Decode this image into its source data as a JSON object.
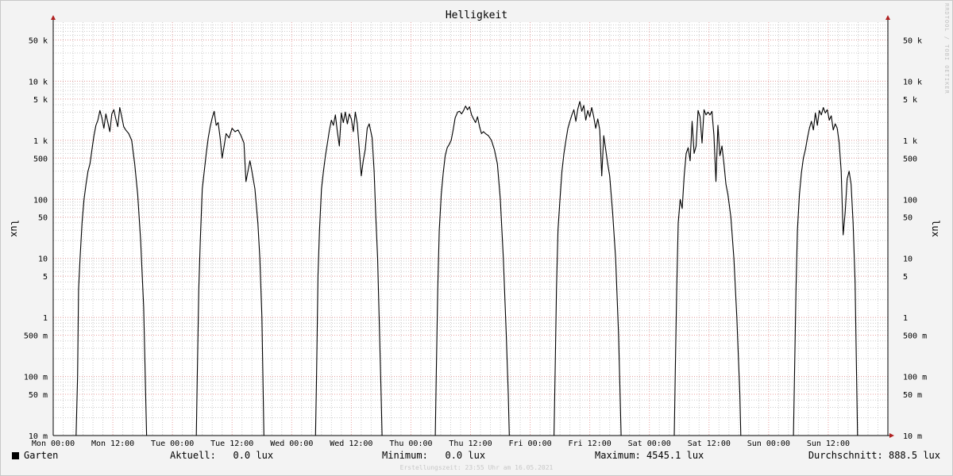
{
  "chart_data": {
    "type": "line",
    "title": "Helligkeit",
    "ylabel": "lux",
    "yscale": "log",
    "ylim": [
      0.01,
      100000
    ],
    "xlim": [
      0,
      168
    ],
    "y_ticks": [
      {
        "v": 50000,
        "label": "50 k"
      },
      {
        "v": 10000,
        "label": "10 k"
      },
      {
        "v": 5000,
        "label": "5 k"
      },
      {
        "v": 1000,
        "label": "1 k"
      },
      {
        "v": 500,
        "label": "500"
      },
      {
        "v": 100,
        "label": "100"
      },
      {
        "v": 50,
        "label": "50"
      },
      {
        "v": 10,
        "label": "10"
      },
      {
        "v": 5,
        "label": "5"
      },
      {
        "v": 1,
        "label": "1"
      },
      {
        "v": 0.5,
        "label": "500 m"
      },
      {
        "v": 0.1,
        "label": "100 m"
      },
      {
        "v": 0.05,
        "label": "50 m"
      },
      {
        "v": 0.01,
        "label": "10 m"
      }
    ],
    "x_ticks": [
      {
        "h": 0,
        "label": "Mon 00:00"
      },
      {
        "h": 12,
        "label": "Mon 12:00"
      },
      {
        "h": 24,
        "label": "Tue 00:00"
      },
      {
        "h": 36,
        "label": "Tue 12:00"
      },
      {
        "h": 48,
        "label": "Wed 00:00"
      },
      {
        "h": 60,
        "label": "Wed 12:00"
      },
      {
        "h": 72,
        "label": "Thu 00:00"
      },
      {
        "h": 84,
        "label": "Thu 12:00"
      },
      {
        "h": 96,
        "label": "Fri 00:00"
      },
      {
        "h": 108,
        "label": "Fri 12:00"
      },
      {
        "h": 120,
        "label": "Sat 00:00"
      },
      {
        "h": 132,
        "label": "Sat 12:00"
      },
      {
        "h": 144,
        "label": "Sun 00:00"
      },
      {
        "h": 156,
        "label": "Sun 12:00"
      }
    ],
    "grid": true,
    "series": [
      {
        "name": "Garten",
        "color": "#000000",
        "points": [
          [
            0,
            0.01
          ],
          [
            4.6,
            0.01
          ],
          [
            4.9,
            0.1
          ],
          [
            5.1,
            3
          ],
          [
            5.4,
            10
          ],
          [
            5.8,
            40
          ],
          [
            6.2,
            100
          ],
          [
            6.6,
            180
          ],
          [
            7.0,
            300
          ],
          [
            7.4,
            400
          ],
          [
            7.8,
            700
          ],
          [
            8.2,
            1200
          ],
          [
            8.6,
            1800
          ],
          [
            9.0,
            2200
          ],
          [
            9.4,
            3200
          ],
          [
            9.8,
            2400
          ],
          [
            10.2,
            1600
          ],
          [
            10.6,
            2800
          ],
          [
            11,
            2000
          ],
          [
            11.4,
            1400
          ],
          [
            11.8,
            2800
          ],
          [
            12.2,
            3300
          ],
          [
            12.6,
            2300
          ],
          [
            13,
            1700
          ],
          [
            13.4,
            3600
          ],
          [
            13.8,
            2500
          ],
          [
            14.2,
            1700
          ],
          [
            14.6,
            1500
          ],
          [
            15.2,
            1300
          ],
          [
            15.8,
            1000
          ],
          [
            16.4,
            400
          ],
          [
            17,
            120
          ],
          [
            17.6,
            20
          ],
          [
            18.2,
            1.5
          ],
          [
            18.6,
            0.05
          ],
          [
            18.8,
            0.01
          ],
          [
            28.8,
            0.01
          ],
          [
            29,
            0.1
          ],
          [
            29.3,
            3
          ],
          [
            29.6,
            20
          ],
          [
            30,
            150
          ],
          [
            30.4,
            300
          ],
          [
            30.8,
            600
          ],
          [
            31.2,
            1100
          ],
          [
            31.6,
            1700
          ],
          [
            32,
            2400
          ],
          [
            32.4,
            3100
          ],
          [
            32.8,
            1800
          ],
          [
            33.2,
            2000
          ],
          [
            33.6,
            1100
          ],
          [
            34,
            500
          ],
          [
            34.4,
            800
          ],
          [
            34.8,
            1300
          ],
          [
            35.4,
            1100
          ],
          [
            36,
            1600
          ],
          [
            36.6,
            1400
          ],
          [
            37.2,
            1500
          ],
          [
            37.8,
            1200
          ],
          [
            38.4,
            900
          ],
          [
            38.8,
            200
          ],
          [
            39.2,
            300
          ],
          [
            39.6,
            450
          ],
          [
            40,
            300
          ],
          [
            40.6,
            150
          ],
          [
            41.2,
            40
          ],
          [
            41.6,
            10
          ],
          [
            42,
            1
          ],
          [
            42.4,
            0.01
          ],
          [
            52.8,
            0.01
          ],
          [
            53,
            0.1
          ],
          [
            53.3,
            5
          ],
          [
            53.6,
            30
          ],
          [
            54,
            150
          ],
          [
            54.4,
            300
          ],
          [
            54.8,
            550
          ],
          [
            55.2,
            900
          ],
          [
            55.6,
            1500
          ],
          [
            56,
            2200
          ],
          [
            56.4,
            1800
          ],
          [
            56.8,
            2700
          ],
          [
            57.2,
            1400
          ],
          [
            57.6,
            800
          ],
          [
            58,
            2900
          ],
          [
            58.4,
            2000
          ],
          [
            58.8,
            3000
          ],
          [
            59.2,
            1900
          ],
          [
            59.6,
            2800
          ],
          [
            60,
            2300
          ],
          [
            60.4,
            1400
          ],
          [
            60.8,
            3000
          ],
          [
            61.2,
            1900
          ],
          [
            61.6,
            700
          ],
          [
            62,
            250
          ],
          [
            62.4,
            450
          ],
          [
            62.8,
            700
          ],
          [
            63.2,
            1600
          ],
          [
            63.6,
            1900
          ],
          [
            64.2,
            1100
          ],
          [
            64.6,
            300
          ],
          [
            64.9,
            60
          ],
          [
            65.3,
            10
          ],
          [
            65.6,
            1
          ],
          [
            66,
            0.05
          ],
          [
            66.2,
            0.01
          ],
          [
            76.9,
            0.01
          ],
          [
            77.1,
            0.1
          ],
          [
            77.4,
            3
          ],
          [
            77.7,
            30
          ],
          [
            78.1,
            120
          ],
          [
            78.5,
            280
          ],
          [
            78.9,
            550
          ],
          [
            79.3,
            750
          ],
          [
            79.7,
            850
          ],
          [
            80.1,
            1000
          ],
          [
            80.5,
            1500
          ],
          [
            80.9,
            2400
          ],
          [
            81.4,
            3000
          ],
          [
            81.8,
            3100
          ],
          [
            82.2,
            2800
          ],
          [
            82.6,
            3200
          ],
          [
            83,
            3800
          ],
          [
            83.4,
            3300
          ],
          [
            83.8,
            3700
          ],
          [
            84.2,
            2700
          ],
          [
            84.6,
            2300
          ],
          [
            85,
            2000
          ],
          [
            85.4,
            2500
          ],
          [
            85.8,
            1700
          ],
          [
            86.2,
            1300
          ],
          [
            86.6,
            1400
          ],
          [
            87,
            1300
          ],
          [
            87.6,
            1200
          ],
          [
            88.2,
            1000
          ],
          [
            88.8,
            700
          ],
          [
            89.4,
            400
          ],
          [
            90,
            100
          ],
          [
            90.6,
            10
          ],
          [
            91.2,
            0.5
          ],
          [
            91.6,
            0.05
          ],
          [
            91.8,
            0.01
          ],
          [
            100.8,
            0.01
          ],
          [
            101,
            0.1
          ],
          [
            101.3,
            3
          ],
          [
            101.6,
            30
          ],
          [
            102,
            100
          ],
          [
            102.4,
            300
          ],
          [
            102.8,
            600
          ],
          [
            103.2,
            1000
          ],
          [
            103.6,
            1600
          ],
          [
            104,
            2100
          ],
          [
            104.4,
            2700
          ],
          [
            104.8,
            3300
          ],
          [
            105.2,
            2100
          ],
          [
            105.6,
            3400
          ],
          [
            106,
            4545
          ],
          [
            106.4,
            3100
          ],
          [
            106.8,
            3900
          ],
          [
            107.2,
            2200
          ],
          [
            107.6,
            3200
          ],
          [
            108,
            2500
          ],
          [
            108.4,
            3600
          ],
          [
            108.8,
            2500
          ],
          [
            109.2,
            1600
          ],
          [
            109.6,
            2300
          ],
          [
            110,
            1500
          ],
          [
            110.4,
            250
          ],
          [
            110.8,
            1200
          ],
          [
            111.2,
            700
          ],
          [
            111.6,
            400
          ],
          [
            112,
            250
          ],
          [
            112.6,
            60
          ],
          [
            113.2,
            10
          ],
          [
            113.8,
            0.5
          ],
          [
            114.1,
            0.05
          ],
          [
            114.3,
            0.01
          ],
          [
            125,
            0.01
          ],
          [
            125.2,
            0.1
          ],
          [
            125.5,
            3
          ],
          [
            125.8,
            40
          ],
          [
            126.2,
            100
          ],
          [
            126.6,
            70
          ],
          [
            127,
            250
          ],
          [
            127.4,
            600
          ],
          [
            127.8,
            750
          ],
          [
            128.2,
            450
          ],
          [
            128.6,
            2100
          ],
          [
            129,
            600
          ],
          [
            129.4,
            800
          ],
          [
            129.8,
            3200
          ],
          [
            130.2,
            2500
          ],
          [
            130.6,
            900
          ],
          [
            131,
            3300
          ],
          [
            131.4,
            2700
          ],
          [
            131.8,
            3000
          ],
          [
            132.2,
            2700
          ],
          [
            132.6,
            3100
          ],
          [
            133,
            1200
          ],
          [
            133.4,
            200
          ],
          [
            133.8,
            1800
          ],
          [
            134.2,
            550
          ],
          [
            134.6,
            800
          ],
          [
            135,
            400
          ],
          [
            135.4,
            180
          ],
          [
            135.8,
            120
          ],
          [
            136.4,
            50
          ],
          [
            137,
            10
          ],
          [
            137.6,
            1
          ],
          [
            138.2,
            0.05
          ],
          [
            138.4,
            0.01
          ],
          [
            149,
            0.01
          ],
          [
            149.2,
            0.1
          ],
          [
            149.5,
            3
          ],
          [
            149.8,
            30
          ],
          [
            150.2,
            120
          ],
          [
            150.6,
            280
          ],
          [
            151,
            500
          ],
          [
            151.4,
            700
          ],
          [
            151.8,
            1100
          ],
          [
            152.2,
            1600
          ],
          [
            152.6,
            2100
          ],
          [
            153,
            1500
          ],
          [
            153.4,
            2900
          ],
          [
            153.8,
            1800
          ],
          [
            154.2,
            3200
          ],
          [
            154.6,
            2700
          ],
          [
            155,
            3600
          ],
          [
            155.4,
            2900
          ],
          [
            155.8,
            3300
          ],
          [
            156.2,
            2200
          ],
          [
            156.6,
            2600
          ],
          [
            157,
            1500
          ],
          [
            157.4,
            1900
          ],
          [
            157.8,
            1600
          ],
          [
            158.2,
            900
          ],
          [
            158.6,
            300
          ],
          [
            159,
            25
          ],
          [
            159.4,
            60
          ],
          [
            159.8,
            220
          ],
          [
            160.2,
            300
          ],
          [
            160.6,
            180
          ],
          [
            161,
            40
          ],
          [
            161.4,
            4
          ],
          [
            161.7,
            0.1
          ],
          [
            161.9,
            0.01
          ],
          [
            168,
            0.01
          ]
        ]
      }
    ]
  },
  "legend": {
    "series_label": "Garten",
    "current": "Aktuell:   0.0 lux",
    "minimum": "Minimum:   0.0 lux",
    "maximum": "Maximum: 4545.1 lux",
    "average": "Durchschnitt: 888.5 lux"
  },
  "footer": "Erstellungszeit: 23:55 Uhr am 16.05.2021",
  "watermark": "RRDTOOL / TOBI OETIKER",
  "colors": {
    "major_grid": "#e8a0a0",
    "minor_grid": "#cccccc",
    "axis": "#000000",
    "arrow": "#b02020",
    "line": "#000000",
    "background": "#f3f3f3",
    "plot_background": "#ffffff"
  }
}
